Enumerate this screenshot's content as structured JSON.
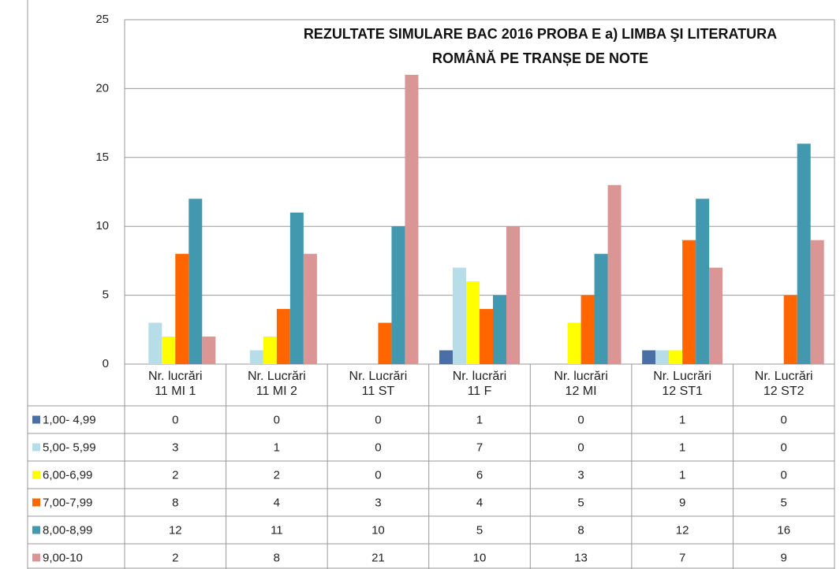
{
  "chart_data": {
    "type": "bar",
    "title": "REZULTATE SIMULARE BAC 2016 PROBA  E a) LIMBA  ŞI  LITERATURA\nROMÂNĂ   PE TRANȘE DE NOTE",
    "categories": [
      "Nr. lucrări\n11 MI 1",
      "Nr. Lucrări\n11 MI 2",
      "Nr. Lucrări\n11 ST",
      "Nr. lucrări\n11 F",
      "Nr. lucrări\n12 MI",
      "Nr. Lucrări\n12 ST1",
      "Nr. Lucrări\n12 ST2"
    ],
    "series": [
      {
        "name": "1,00- 4,99",
        "color": "#4a6fa5",
        "values": [
          0,
          0,
          0,
          1,
          0,
          1,
          0
        ]
      },
      {
        "name": "5,00- 5,99",
        "color": "#b7dde8",
        "values": [
          3,
          1,
          0,
          7,
          0,
          1,
          0
        ]
      },
      {
        "name": "6,00-6,99",
        "color": "#ffff00",
        "values": [
          2,
          2,
          0,
          6,
          3,
          1,
          0
        ]
      },
      {
        "name": "7,00-7,99",
        "color": "#ff6600",
        "values": [
          8,
          4,
          3,
          4,
          5,
          9,
          5
        ]
      },
      {
        "name": "8,00-8,99",
        "color": "#4198af",
        "values": [
          12,
          11,
          10,
          5,
          8,
          12,
          16
        ]
      },
      {
        "name": "9,00-10",
        "color": "#d99694",
        "values": [
          2,
          8,
          21,
          10,
          13,
          7,
          9
        ]
      }
    ],
    "ylim": [
      0,
      25
    ],
    "yticks": [
      0,
      5,
      10,
      15,
      20,
      25
    ],
    "grid": true
  }
}
